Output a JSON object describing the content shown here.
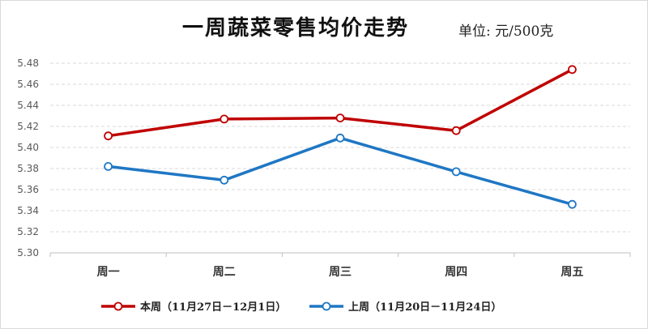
{
  "title": "一周蔬菜零售均价走势",
  "unit_label": "单位: 元/500克",
  "colors": {
    "this_week": "#c00000",
    "last_week": "#1f77c4",
    "grid": "#d9d9d9",
    "axis": "#bfbfbf"
  },
  "chart_data": {
    "type": "line",
    "title": "一周蔬菜零售均价走势",
    "xlabel": "",
    "ylabel": "",
    "categories": [
      "周一",
      "周二",
      "周三",
      "周四",
      "周五"
    ],
    "ylim": [
      5.3,
      5.48
    ],
    "yticks": [
      "5.30",
      "5.32",
      "5.34",
      "5.36",
      "5.38",
      "5.40",
      "5.42",
      "5.44",
      "5.46",
      "5.48"
    ],
    "grid": true,
    "legend_position": "bottom",
    "series": [
      {
        "name": "本周（11月27日－12月1日）",
        "color": "#c00000",
        "values": [
          5.411,
          5.427,
          5.428,
          5.416,
          5.474
        ]
      },
      {
        "name": "上周（11月20日－11月24日）",
        "color": "#1f77c4",
        "values": [
          5.382,
          5.369,
          5.409,
          5.377,
          5.346
        ]
      }
    ]
  }
}
